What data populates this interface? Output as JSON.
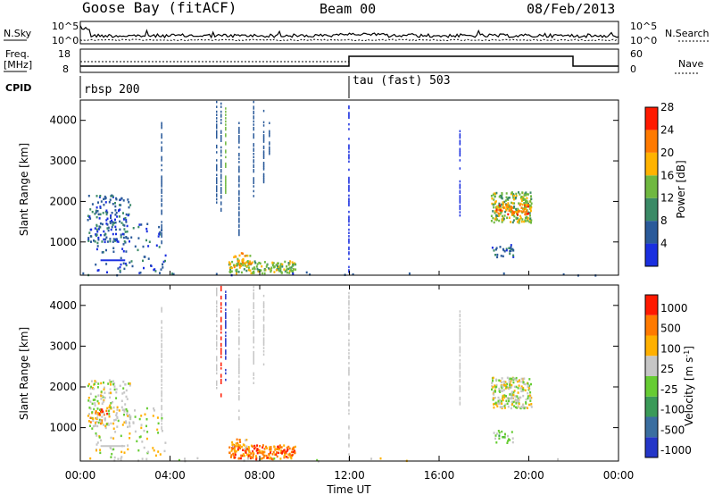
{
  "header": {
    "radar": "Goose Bay (fitACF)",
    "beam": "Beam 00",
    "date": "08/Feb/2013"
  },
  "noise_panel": {
    "left_label": "N.Sky",
    "left_ticks": [
      "10^5",
      "10^0"
    ],
    "right_label": "N.Search",
    "right_ticks": [
      "10^5",
      "10^0"
    ]
  },
  "freq_panel": {
    "left_label_1": "Freq.",
    "left_label_2": "[MHz]",
    "left_ticks": [
      "18",
      "8"
    ],
    "right_label": "Nave",
    "right_ticks": [
      "60",
      "0"
    ]
  },
  "cpid_panel": {
    "label": "CPID",
    "modes": [
      {
        "name": "rbsp 200",
        "start_hour": 0
      },
      {
        "name": "tau (fast) 503",
        "start_hour": 12
      }
    ]
  },
  "x_axis": {
    "label": "Time UT",
    "ticks": [
      "00:00",
      "04:00",
      "08:00",
      "12:00",
      "16:00",
      "20:00",
      "00:00"
    ],
    "range_hours": [
      0,
      24
    ]
  },
  "chart_data": [
    {
      "type": "heatmap",
      "name": "power",
      "ylabel": "Slant Range [km]",
      "ylim": [
        180,
        4500
      ],
      "yticks": [
        1000,
        2000,
        3000,
        4000
      ],
      "colorbar": {
        "label": "Power [dB]",
        "ticks": [
          "4",
          "8",
          "12",
          "16",
          "20",
          "24",
          "28"
        ],
        "colors": [
          "#1a2fe0",
          "#2a5a9a",
          "#3a8a66",
          "#6fb840",
          "#ffb300",
          "#ff7a00",
          "#ff1a00"
        ]
      },
      "regions": [
        {
          "t": [
            0.3,
            2.2
          ],
          "r": [
            1000,
            2200
          ],
          "level": 1,
          "density": 0.35
        },
        {
          "t": [
            0.6,
            3.8
          ],
          "r": [
            250,
            1500
          ],
          "level": 1,
          "density": 0.12
        },
        {
          "t": [
            6.6,
            9.6
          ],
          "r": [
            250,
            550
          ],
          "level": 3,
          "density": 0.9
        },
        {
          "t": [
            6.8,
            7.6
          ],
          "r": [
            400,
            750
          ],
          "level": 4,
          "density": 0.6
        },
        {
          "t": [
            18.3,
            20.1
          ],
          "r": [
            1500,
            2250
          ],
          "level": 3,
          "density": 0.85
        },
        {
          "t": [
            18.5,
            20.0
          ],
          "r": [
            1700,
            1950
          ],
          "level": 5,
          "density": 0.7
        },
        {
          "t": [
            18.3,
            19.3
          ],
          "r": [
            650,
            950
          ],
          "level": 1,
          "density": 0.5
        },
        {
          "t": [
            0.0,
            24.0
          ],
          "r": [
            200,
            280
          ],
          "level": 1,
          "density": 0.05
        }
      ],
      "columns": [
        {
          "t": 6.05,
          "r": [
            2000,
            4500
          ],
          "level": 1
        },
        {
          "t": 6.25,
          "r": [
            1800,
            4500
          ],
          "level": 1
        },
        {
          "t": 6.45,
          "r": [
            2200,
            4400
          ],
          "level": 3
        },
        {
          "t": 7.05,
          "r": [
            1200,
            4000
          ],
          "level": 1
        },
        {
          "t": 7.7,
          "r": [
            2000,
            4500
          ],
          "level": 1
        },
        {
          "t": 8.15,
          "r": [
            2500,
            4300
          ],
          "level": 1
        },
        {
          "t": 8.4,
          "r": [
            3200,
            4100
          ],
          "level": 1
        },
        {
          "t": 3.6,
          "r": [
            1000,
            4000
          ],
          "level": 1
        },
        {
          "t": 11.95,
          "r": [
            250,
            4400
          ],
          "level": 0
        },
        {
          "t": 16.9,
          "r": [
            1600,
            3900
          ],
          "level": 0
        }
      ],
      "dashes": [
        {
          "t": [
            0.9,
            2.0
          ],
          "r": 570,
          "level": 0
        }
      ]
    },
    {
      "type": "heatmap",
      "name": "velocity",
      "ylabel": "Slant Range [km]",
      "ylim": [
        180,
        4500
      ],
      "yticks": [
        1000,
        2000,
        3000,
        4000
      ],
      "colorbar": {
        "label": "Velocity [m s^-1]",
        "ticks": [
          "1000",
          "500",
          "100",
          "25",
          "-25",
          "-100",
          "-500",
          "-1000"
        ],
        "colors": [
          "#2436c8",
          "#3a6ea0",
          "#3a9a58",
          "#66cc33",
          "#c6c6c6",
          "#ffb000",
          "#ff7a00",
          "#ff1a00"
        ]
      },
      "regions": [
        {
          "t": [
            0.3,
            2.2
          ],
          "r": [
            1000,
            2200
          ],
          "level": 4,
          "density": 0.35
        },
        {
          "t": [
            0.4,
            1.2
          ],
          "r": [
            1100,
            1500
          ],
          "level": 6,
          "density": 0.35
        },
        {
          "t": [
            0.6,
            3.8
          ],
          "r": [
            250,
            1500
          ],
          "level": 4,
          "density": 0.12
        },
        {
          "t": [
            6.6,
            9.6
          ],
          "r": [
            250,
            600
          ],
          "level": 6,
          "density": 0.9
        },
        {
          "t": [
            6.7,
            7.4
          ],
          "r": [
            450,
            750
          ],
          "level": 5,
          "density": 0.5
        },
        {
          "t": [
            18.3,
            20.1
          ],
          "r": [
            1500,
            2250
          ],
          "level": 4,
          "density": 0.9
        },
        {
          "t": [
            18.3,
            19.3
          ],
          "r": [
            650,
            950
          ],
          "level": 3,
          "density": 0.4
        },
        {
          "t": [
            0.0,
            24.0
          ],
          "r": [
            200,
            280
          ],
          "level": 4,
          "density": 0.05
        }
      ],
      "columns": [
        {
          "t": 6.05,
          "r": [
            2000,
            4500
          ],
          "level": 4
        },
        {
          "t": 6.25,
          "r": [
            1800,
            4500
          ],
          "level": 7
        },
        {
          "t": 6.45,
          "r": [
            2200,
            4400
          ],
          "level": 0
        },
        {
          "t": 7.05,
          "r": [
            1200,
            4000
          ],
          "level": 4
        },
        {
          "t": 7.7,
          "r": [
            2000,
            4500
          ],
          "level": 4
        },
        {
          "t": 8.15,
          "r": [
            2500,
            4300
          ],
          "level": 4
        },
        {
          "t": 3.6,
          "r": [
            1000,
            4000
          ],
          "level": 4
        },
        {
          "t": 11.95,
          "r": [
            250,
            4400
          ],
          "level": 4
        },
        {
          "t": 16.9,
          "r": [
            1600,
            3900
          ],
          "level": 4
        }
      ],
      "dashes": [
        {
          "t": [
            0.9,
            2.0
          ],
          "r": 570,
          "level": 4
        }
      ]
    }
  ]
}
